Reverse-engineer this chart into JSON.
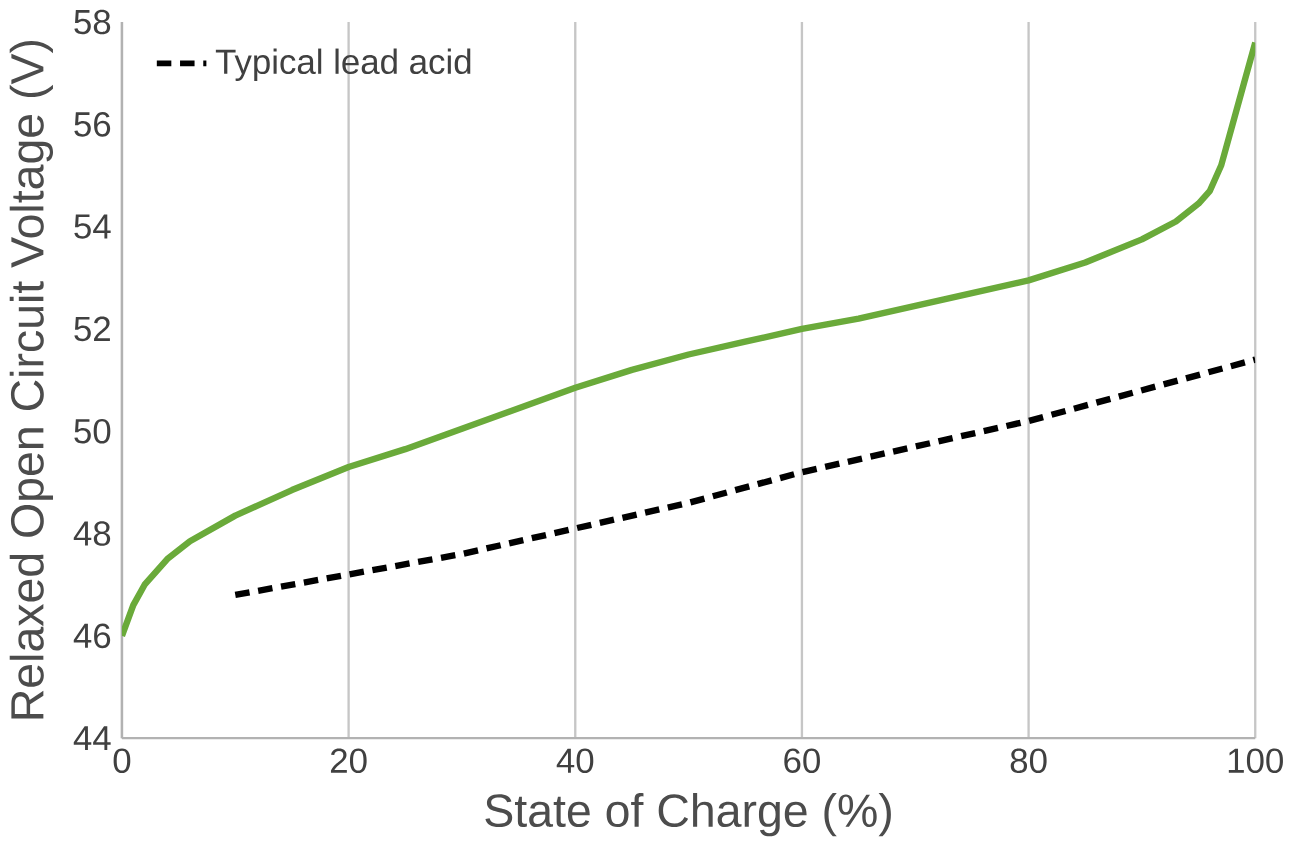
{
  "chart_data": {
    "type": "line",
    "xlabel": "State of Charge (%)",
    "ylabel": "Relaxed Open Circuit Voltage (V)",
    "xlim": [
      0,
      100
    ],
    "ylim": [
      44,
      58
    ],
    "xticks": [
      0,
      20,
      40,
      60,
      80,
      100
    ],
    "yticks": [
      44,
      46,
      48,
      50,
      52,
      54,
      56,
      58
    ],
    "grid": "x",
    "legend": "top left",
    "marker": "none",
    "series": [
      {
        "color": "#6aaa3a",
        "line_style": "solid",
        "x": [
          0,
          1,
          2,
          4,
          6,
          8,
          10,
          15,
          20,
          25,
          30,
          35,
          40,
          45,
          50,
          55,
          60,
          65,
          70,
          75,
          80,
          85,
          90,
          93,
          95,
          96,
          97,
          98,
          99,
          100
        ],
        "values": [
          46.0,
          46.6,
          47.0,
          47.5,
          47.85,
          48.1,
          48.35,
          48.85,
          49.3,
          49.65,
          50.05,
          50.45,
          50.85,
          51.2,
          51.5,
          51.75,
          52.0,
          52.2,
          52.45,
          52.7,
          52.95,
          53.3,
          53.75,
          54.1,
          54.45,
          54.7,
          55.2,
          56.0,
          56.8,
          57.6
        ]
      },
      {
        "name": "Typical lead acid",
        "color": "#000000",
        "line_style": "dashed",
        "x": [
          10,
          20,
          30,
          40,
          50,
          60,
          70,
          80,
          90,
          100
        ],
        "values": [
          46.8,
          47.2,
          47.6,
          48.1,
          48.6,
          49.2,
          49.7,
          50.2,
          50.8,
          51.4
        ]
      }
    ]
  }
}
